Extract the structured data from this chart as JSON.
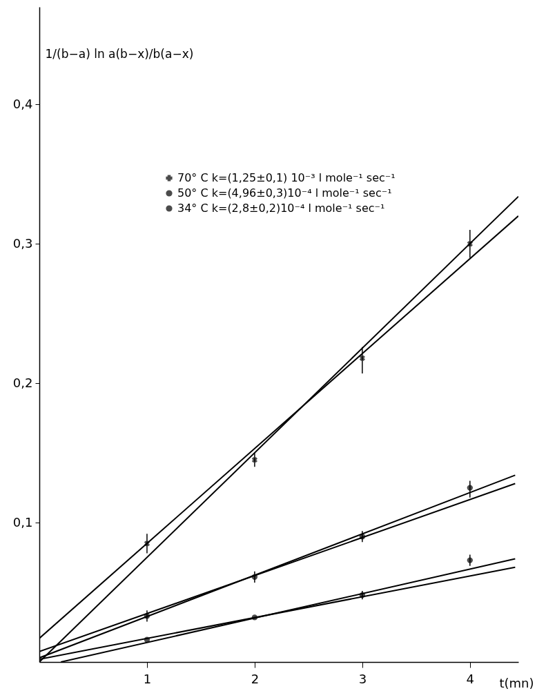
{
  "chart_data": {
    "type": "scatter",
    "xlabel": "t(mn)",
    "ylabel": "1/(b−a) ln a(b−x)/b(a−x)",
    "xlim": [
      0,
      4.45
    ],
    "ylim": [
      0,
      0.47
    ],
    "xticks": [
      1,
      2,
      3,
      4
    ],
    "yticks": [
      {
        "value": 0.1,
        "label": "0,1"
      },
      {
        "value": 0.2,
        "label": "0,2"
      },
      {
        "value": 0.3,
        "label": "0,3"
      },
      {
        "value": 0.4,
        "label": "0,4"
      }
    ],
    "grid": false,
    "legend": "top",
    "series": [
      {
        "name": "70° C  k=(1,25±0,1) 10⁻³ l mole⁻¹ sec⁻¹",
        "color": "#000000",
        "marker": "cross",
        "x": [
          1,
          2,
          3,
          4
        ],
        "values": [
          0.085,
          0.145,
          0.218,
          0.3
        ],
        "errors": [
          0.007,
          0.005,
          [
            0.207,
            0.226
          ],
          0.01
        ]
      },
      {
        "name": "50° C  k=(4,96±0,3)10⁻⁴ l mole⁻¹ sec⁻¹",
        "color": "#000000",
        "marker": "circle",
        "x": [
          1,
          2,
          3,
          4
        ],
        "values": [
          0.033,
          0.061,
          0.09,
          0.125
        ],
        "errors": [
          0.004,
          0.004,
          0.004,
          [
            0.118,
            0.13
          ]
        ]
      },
      {
        "name": "34° C  k=(2,8±0,2)10⁻⁴ l mole⁻¹ sec⁻¹",
        "color": "#000000",
        "marker": "circle",
        "x": [
          1,
          2,
          3,
          4
        ],
        "values": [
          0.016,
          0.032,
          0.048,
          0.073
        ],
        "errors": [
          null,
          null,
          0.003,
          0.004
        ]
      },
      {
        "type": "line",
        "color": "#000000",
        "x": [
          0,
          4.45
        ],
        "values": [
          0.017,
          0.32
        ]
      },
      {
        "type": "line",
        "color": "#000000",
        "x": [
          0,
          4.45
        ],
        "values": [
          0,
          0.334
        ]
      },
      {
        "type": "line",
        "color": "#000000",
        "x": [
          0,
          4.42
        ],
        "values": [
          0.0075,
          0.128
        ]
      },
      {
        "type": "line",
        "color": "#000000",
        "x": [
          0,
          4.42
        ],
        "values": [
          0.003,
          0.134
        ]
      },
      {
        "type": "line",
        "color": "#000000",
        "x": [
          0,
          4.42
        ],
        "values": [
          0.002,
          0.068
        ]
      },
      {
        "type": "line",
        "color": "#000000",
        "x": [
          0.2,
          4.42
        ],
        "values": [
          0,
          0.074
        ]
      }
    ]
  }
}
